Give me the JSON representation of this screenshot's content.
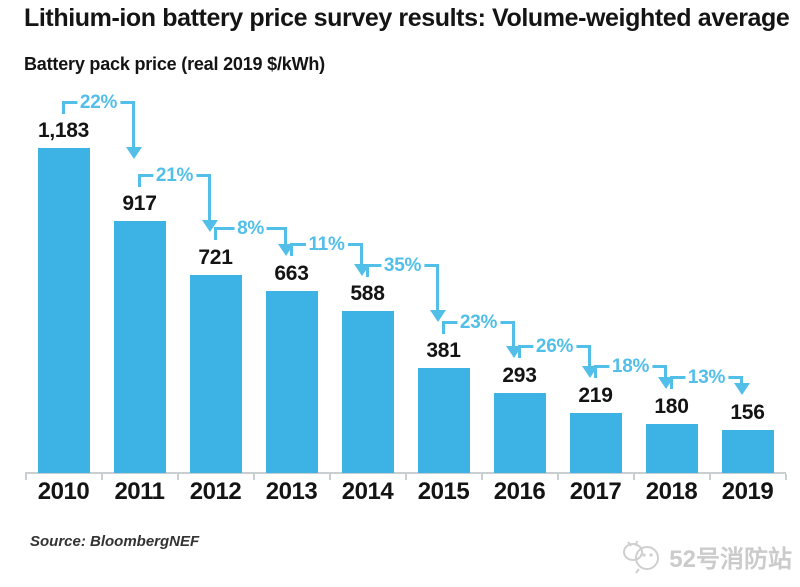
{
  "watermark": {
    "label": "52号消防站",
    "icon": "doodle-mascot-icon"
  },
  "colors": {
    "bar": "#3cb3e4",
    "annotation": "#52bfe9",
    "axis": "#c9ced1",
    "text": "#141414",
    "watermark": "#cbcbcb"
  },
  "chart_data": {
    "type": "bar",
    "title": "Lithium-ion battery price survey results: Volume-weighted average",
    "ylabel": "Battery pack price (real 2019 $/kWh)",
    "source": "Source: BloombergNEF",
    "categories": [
      "2010",
      "2011",
      "2012",
      "2013",
      "2014",
      "2015",
      "2016",
      "2017",
      "2018",
      "2019"
    ],
    "values": [
      1183,
      917,
      721,
      663,
      588,
      381,
      293,
      219,
      180,
      156
    ],
    "value_labels": [
      "1,183",
      "917",
      "721",
      "663",
      "588",
      "381",
      "293",
      "219",
      "180",
      "156"
    ],
    "pct_decline_labels": [
      "22%",
      "21%",
      "8%",
      "11%",
      "35%",
      "23%",
      "26%",
      "18%",
      "13%"
    ],
    "ylim": [
      0,
      1250
    ],
    "grid": false,
    "legend": "none",
    "bar_color": "#3cb3e4",
    "annotation_color": "#52bfe9"
  }
}
